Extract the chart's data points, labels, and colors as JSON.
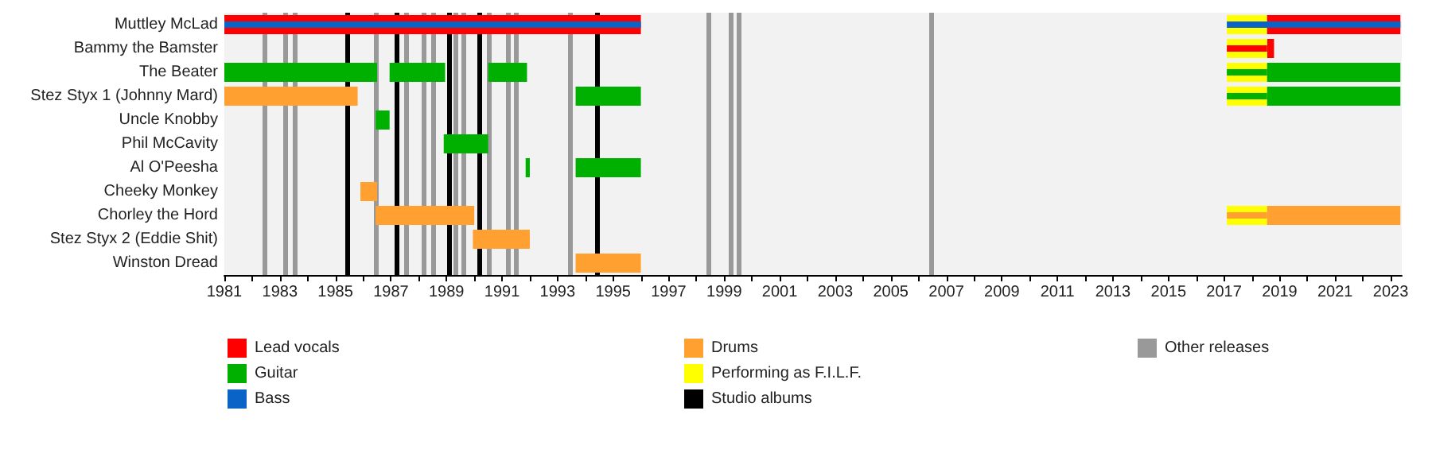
{
  "chart_data": {
    "type": "bar",
    "orientation": "horizontal",
    "legend": "bottom",
    "grid": false,
    "categories": [
      "Muttley McLad",
      "Bammy the Bamster",
      "The Beater",
      "Stez Styx 1 (Johnny Mard)",
      "Uncle Knobby",
      "Phil McCavity",
      "Al O'Peesha",
      "Cheeky Monkey",
      "Chorley the Hord",
      "Stez Styx 2 (Eddie Shit)",
      "Winston Dread"
    ],
    "xlim": [
      1981,
      2023.4
    ],
    "xticks": [
      1981,
      {
        "value": 1982,
        "label": null
      },
      1983,
      {
        "value": 1984,
        "label": null
      },
      1985,
      {
        "value": 1986,
        "label": null
      },
      1987,
      {
        "value": 1988,
        "label": null
      },
      1989,
      {
        "value": 1990,
        "label": null
      },
      1991,
      {
        "value": 1992,
        "label": null
      },
      1993,
      {
        "value": 1994,
        "label": null
      },
      1995,
      {
        "value": 1996,
        "label": null
      },
      1997,
      {
        "value": 1998,
        "label": null
      },
      1999,
      {
        "value": 2000,
        "label": null
      },
      2001,
      {
        "value": 2002,
        "label": null
      },
      2003,
      {
        "value": 2004,
        "label": null
      },
      2005,
      {
        "value": 2006,
        "label": null
      },
      2007,
      {
        "value": 2008,
        "label": null
      },
      2009,
      {
        "value": 2010,
        "label": null
      },
      2011,
      {
        "value": 2012,
        "label": null
      },
      2013,
      {
        "value": 2014,
        "label": null
      },
      2015,
      {
        "value": 2016,
        "label": null
      },
      2017,
      {
        "value": 2018,
        "label": null
      },
      2019,
      {
        "value": 2020,
        "label": null
      },
      2021,
      {
        "value": 2022,
        "label": null
      },
      2023
    ],
    "series": [
      {
        "name": "Lead vocals",
        "color": "#ff0000",
        "base": [
          1981,
          2018.55,
          null,
          null,
          null,
          null,
          null,
          null,
          null,
          null,
          null
        ],
        "values": [
          15,
          0.25,
          null,
          null,
          null,
          null,
          null,
          null,
          null,
          null,
          null
        ]
      },
      {
        "name": "Guitar",
        "color": "#00b000",
        "base": [
          null,
          null,
          1981,
          1993.65,
          1986.45,
          1988.9,
          1991.85,
          null,
          null,
          null,
          null
        ],
        "values": [
          null,
          null,
          5.5,
          2.35,
          0.5,
          1.6,
          0.15,
          null,
          null,
          null,
          null
        ]
      },
      {
        "name": "Bass",
        "color": "#0a64c8",
        "base": [
          1981,
          null,
          null,
          null,
          null,
          null,
          null,
          null,
          null,
          null,
          null
        ],
        "values": [
          15,
          null,
          null,
          null,
          null,
          null,
          null,
          null,
          null,
          null,
          null
        ]
      },
      {
        "name": "Drums",
        "color": "#ffa030",
        "base": [
          null,
          null,
          null,
          1981,
          null,
          null,
          null,
          1985.9,
          1986.45,
          1989.95,
          1993.65
        ],
        "values": [
          null,
          null,
          null,
          4.8,
          null,
          null,
          null,
          0.6,
          3.55,
          2.05,
          2.35
        ]
      },
      {
        "name": "Performing as F.I.L.F.",
        "color": "#ffff00",
        "base": [
          2017.1,
          2017.1,
          2017.1,
          2017.1,
          null,
          null,
          null,
          null,
          2017.1,
          null,
          null
        ],
        "values": [
          1.45,
          1.45,
          1.45,
          1.45,
          null,
          null,
          null,
          null,
          1.45,
          null,
          null
        ]
      },
      {
        "color": "#ff0000",
        "base": [
          2018.55,
          null,
          null,
          null,
          null,
          null,
          null,
          null,
          null,
          null,
          null
        ],
        "values": [
          4.8,
          null,
          null,
          null,
          null,
          null,
          null,
          null,
          null,
          null,
          null
        ]
      },
      {
        "color": "#00b000",
        "base": [
          null,
          null,
          1986.95,
          null,
          null,
          null,
          1993.65,
          null,
          null,
          null,
          null
        ],
        "values": [
          null,
          null,
          2.0,
          null,
          null,
          null,
          2.35,
          null,
          null,
          null,
          null
        ]
      },
      {
        "color": "#00b000",
        "base": [
          null,
          null,
          1990.5,
          2018.55,
          null,
          null,
          null,
          null,
          null,
          null,
          null
        ],
        "values": [
          null,
          null,
          1.4,
          4.8,
          null,
          null,
          null,
          null,
          null,
          null,
          null
        ]
      },
      {
        "color": "#00b000",
        "base": [
          null,
          null,
          2018.55,
          null,
          null,
          null,
          null,
          null,
          null,
          null,
          null
        ],
        "values": [
          null,
          null,
          4.8,
          null,
          null,
          null,
          null,
          null,
          null,
          null,
          null
        ]
      },
      {
        "color": "#ffa030",
        "base": [
          null,
          null,
          null,
          null,
          null,
          null,
          null,
          null,
          2018.55,
          null,
          null
        ],
        "values": [
          null,
          null,
          null,
          null,
          null,
          null,
          null,
          null,
          4.8,
          null,
          null
        ]
      },
      {
        "color": "#0a64c8",
        "base": [
          2017.1,
          null,
          null,
          null,
          null,
          null,
          null,
          null,
          null,
          null,
          null
        ],
        "values": [
          6.25,
          null,
          null,
          null,
          null,
          null,
          null,
          null,
          null,
          null,
          null
        ]
      },
      {
        "color": "#ff0000",
        "base": [
          null,
          2017.1,
          null,
          null,
          null,
          null,
          null,
          null,
          null,
          null,
          null
        ],
        "values": [
          null,
          1.45,
          null,
          null,
          null,
          null,
          null,
          null,
          null,
          null,
          null
        ]
      },
      {
        "color": "#00b000",
        "base": [
          null,
          null,
          2017.1,
          2017.1,
          null,
          null,
          null,
          null,
          null,
          null,
          null
        ],
        "values": [
          null,
          null,
          1.45,
          1.45,
          null,
          null,
          null,
          null,
          null,
          null,
          null
        ]
      },
      {
        "color": "#ffa030",
        "base": [
          null,
          null,
          null,
          null,
          null,
          null,
          null,
          null,
          2017.1,
          null,
          null
        ],
        "values": [
          null,
          null,
          null,
          null,
          null,
          null,
          null,
          null,
          1.45,
          null,
          null
        ]
      }
    ],
    "ref_lines": [
      {
        "axis": "x",
        "value": 1985.42,
        "label": "Studio albums",
        "color": "#000000"
      },
      {
        "axis": "x",
        "value": 1987.2,
        "color": "#000000"
      },
      {
        "axis": "x",
        "value": 1989.09,
        "color": "#000000"
      },
      {
        "axis": "x",
        "value": 1990.18,
        "color": "#000000"
      },
      {
        "axis": "x",
        "value": 1994.42,
        "color": "#000000"
      },
      {
        "axis": "x",
        "value": 1982.43,
        "label": "Other releases",
        "color": "#999999"
      },
      {
        "axis": "x",
        "value": 1983.19,
        "color": "#999999"
      },
      {
        "axis": "x",
        "value": 1983.54,
        "color": "#999999"
      },
      {
        "axis": "x",
        "value": 1986.46,
        "color": "#999999"
      },
      {
        "axis": "x",
        "value": 1987.55,
        "color": "#999999"
      },
      {
        "axis": "x",
        "value": 1988.17,
        "color": "#999999"
      },
      {
        "axis": "x",
        "value": 1988.52,
        "color": "#999999"
      },
      {
        "axis": "x",
        "value": 1989.34,
        "color": "#999999"
      },
      {
        "axis": "x",
        "value": 1989.6,
        "color": "#999999"
      },
      {
        "axis": "x",
        "value": 1990.52,
        "color": "#999999"
      },
      {
        "axis": "x",
        "value": 1991.19,
        "color": "#999999"
      },
      {
        "axis": "x",
        "value": 1991.48,
        "color": "#999999"
      },
      {
        "axis": "x",
        "value": 1993.46,
        "color": "#999999"
      },
      {
        "axis": "x",
        "value": 1998.44,
        "color": "#999999"
      },
      {
        "axis": "x",
        "value": 1999.22,
        "color": "#999999"
      },
      {
        "axis": "x",
        "value": 1999.5,
        "color": "#999999"
      },
      {
        "axis": "x",
        "value": 2006.43,
        "color": "#999999"
      }
    ]
  }
}
